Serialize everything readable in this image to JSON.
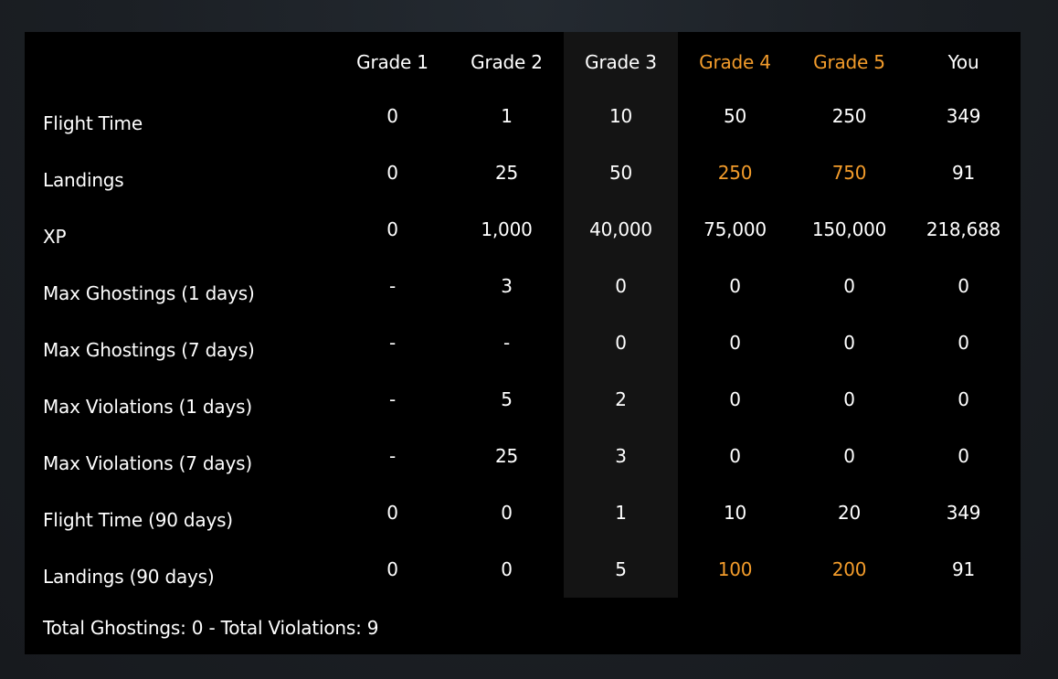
{
  "colors": {
    "background": "#1d2126",
    "panel": "#000000",
    "highlight_column": "#141414",
    "text": "#ffffff",
    "accent": "#f39c2b"
  },
  "table": {
    "columns": [
      {
        "label": "Grade 1",
        "highlight": false
      },
      {
        "label": "Grade 2",
        "highlight": false
      },
      {
        "label": "Grade 3",
        "highlight": false
      },
      {
        "label": "Grade 4",
        "highlight": true
      },
      {
        "label": "Grade 5",
        "highlight": true
      },
      {
        "label": "You",
        "highlight": false
      }
    ],
    "highlighted_column_index": 2,
    "rows": [
      {
        "label": "Flight Time",
        "cells": [
          {
            "v": "0",
            "h": false
          },
          {
            "v": "1",
            "h": false
          },
          {
            "v": "10",
            "h": false
          },
          {
            "v": "50",
            "h": false
          },
          {
            "v": "250",
            "h": false
          },
          {
            "v": "349",
            "h": false
          }
        ]
      },
      {
        "label": "Landings",
        "cells": [
          {
            "v": "0",
            "h": false
          },
          {
            "v": "25",
            "h": false
          },
          {
            "v": "50",
            "h": false
          },
          {
            "v": "250",
            "h": true
          },
          {
            "v": "750",
            "h": true
          },
          {
            "v": "91",
            "h": false
          }
        ]
      },
      {
        "label": "XP",
        "cells": [
          {
            "v": "0",
            "h": false
          },
          {
            "v": "1,000",
            "h": false
          },
          {
            "v": "40,000",
            "h": false
          },
          {
            "v": "75,000",
            "h": false
          },
          {
            "v": "150,000",
            "h": false
          },
          {
            "v": "218,688",
            "h": false
          }
        ]
      },
      {
        "label": "Max Ghostings (1 days)",
        "cells": [
          {
            "v": "-",
            "h": false
          },
          {
            "v": "3",
            "h": false
          },
          {
            "v": "0",
            "h": false
          },
          {
            "v": "0",
            "h": false
          },
          {
            "v": "0",
            "h": false
          },
          {
            "v": "0",
            "h": false
          }
        ]
      },
      {
        "label": "Max Ghostings (7 days)",
        "cells": [
          {
            "v": "-",
            "h": false
          },
          {
            "v": "-",
            "h": false
          },
          {
            "v": "0",
            "h": false
          },
          {
            "v": "0",
            "h": false
          },
          {
            "v": "0",
            "h": false
          },
          {
            "v": "0",
            "h": false
          }
        ]
      },
      {
        "label": "Max Violations (1 days)",
        "cells": [
          {
            "v": "-",
            "h": false
          },
          {
            "v": "5",
            "h": false
          },
          {
            "v": "2",
            "h": false
          },
          {
            "v": "0",
            "h": false
          },
          {
            "v": "0",
            "h": false
          },
          {
            "v": "0",
            "h": false
          }
        ]
      },
      {
        "label": "Max Violations (7 days)",
        "cells": [
          {
            "v": "-",
            "h": false
          },
          {
            "v": "25",
            "h": false
          },
          {
            "v": "3",
            "h": false
          },
          {
            "v": "0",
            "h": false
          },
          {
            "v": "0",
            "h": false
          },
          {
            "v": "0",
            "h": false
          }
        ]
      },
      {
        "label": "Flight Time (90 days)",
        "cells": [
          {
            "v": "0",
            "h": false
          },
          {
            "v": "0",
            "h": false
          },
          {
            "v": "1",
            "h": false
          },
          {
            "v": "10",
            "h": false
          },
          {
            "v": "20",
            "h": false
          },
          {
            "v": "349",
            "h": false
          }
        ]
      },
      {
        "label": "Landings (90 days)",
        "cells": [
          {
            "v": "0",
            "h": false
          },
          {
            "v": "0",
            "h": false
          },
          {
            "v": "5",
            "h": false
          },
          {
            "v": "100",
            "h": true
          },
          {
            "v": "200",
            "h": true
          },
          {
            "v": "91",
            "h": false
          }
        ]
      }
    ]
  },
  "summary": "Total Ghostings: 0 - Total Violations: 9"
}
